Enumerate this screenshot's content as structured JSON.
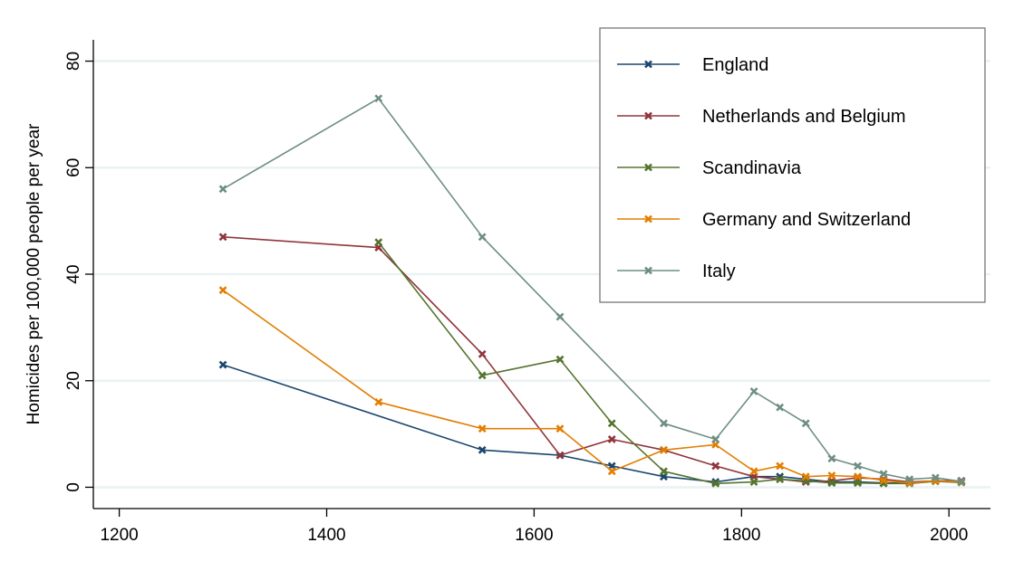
{
  "chart_data": {
    "type": "line",
    "title": "",
    "xlabel": "",
    "ylabel": "Homicides per 100,000 people per year",
    "xlim": [
      1175,
      2040
    ],
    "ylim": [
      -4,
      84
    ],
    "x_ticks": [
      1200,
      1400,
      1600,
      1800,
      2000
    ],
    "y_ticks": [
      0,
      20,
      40,
      60,
      80
    ],
    "grid": true,
    "legend_position": "top-right",
    "series": [
      {
        "name": "England",
        "color": "#1a476f",
        "points": [
          [
            1300,
            23
          ],
          [
            1550,
            7
          ],
          [
            1625,
            6
          ],
          [
            1675,
            4
          ],
          [
            1725,
            2
          ],
          [
            1775,
            1
          ],
          [
            1812,
            2
          ],
          [
            1837,
            2
          ],
          [
            1862,
            1.5
          ],
          [
            1887,
            1
          ],
          [
            1912,
            1
          ],
          [
            1937,
            0.8
          ],
          [
            1962,
            0.8
          ],
          [
            1987,
            1.2
          ],
          [
            2012,
            1.2
          ]
        ]
      },
      {
        "name": "Netherlands and Belgium",
        "color": "#90353b",
        "points": [
          [
            1300,
            47
          ],
          [
            1450,
            45
          ],
          [
            1550,
            25
          ],
          [
            1625,
            6
          ],
          [
            1675,
            9
          ],
          [
            1725,
            7
          ],
          [
            1775,
            4
          ],
          [
            1812,
            2
          ],
          [
            1837,
            1.5
          ],
          [
            1862,
            1
          ],
          [
            1887,
            1.2
          ],
          [
            1912,
            1.8
          ],
          [
            1937,
            1.5
          ],
          [
            1962,
            1
          ],
          [
            1987,
            1.2
          ],
          [
            2012,
            1.2
          ]
        ]
      },
      {
        "name": "Scandinavia",
        "color": "#55752f",
        "points": [
          [
            1450,
            46
          ],
          [
            1550,
            21
          ],
          [
            1625,
            24
          ],
          [
            1675,
            12
          ],
          [
            1725,
            3
          ],
          [
            1775,
            0.7
          ],
          [
            1812,
            1
          ],
          [
            1837,
            1.5
          ],
          [
            1862,
            1.2
          ],
          [
            1887,
            0.8
          ],
          [
            1912,
            0.8
          ],
          [
            1937,
            0.7
          ],
          [
            1962,
            0.7
          ],
          [
            1987,
            1.1
          ],
          [
            2012,
            0.9
          ]
        ]
      },
      {
        "name": "Germany and Switzerland",
        "color": "#e37e00",
        "points": [
          [
            1300,
            37
          ],
          [
            1450,
            16
          ],
          [
            1550,
            11
          ],
          [
            1625,
            11
          ],
          [
            1675,
            3
          ],
          [
            1725,
            7
          ],
          [
            1775,
            8
          ],
          [
            1812,
            3
          ],
          [
            1837,
            4
          ],
          [
            1862,
            2
          ],
          [
            1887,
            2.2
          ],
          [
            1912,
            2
          ],
          [
            1937,
            1.3
          ],
          [
            1962,
            0.8
          ],
          [
            1987,
            1.2
          ],
          [
            2012,
            1
          ]
        ]
      },
      {
        "name": "Italy",
        "color": "#6e8e84",
        "points": [
          [
            1300,
            56
          ],
          [
            1450,
            73
          ],
          [
            1550,
            47
          ],
          [
            1625,
            32
          ],
          [
            1725,
            12
          ],
          [
            1775,
            9
          ],
          [
            1812,
            18
          ],
          [
            1837,
            15
          ],
          [
            1862,
            12
          ],
          [
            1887,
            5.4
          ],
          [
            1912,
            4
          ],
          [
            1937,
            2.5
          ],
          [
            1962,
            1.5
          ],
          [
            1987,
            1.8
          ],
          [
            2012,
            1.1
          ]
        ]
      }
    ]
  }
}
